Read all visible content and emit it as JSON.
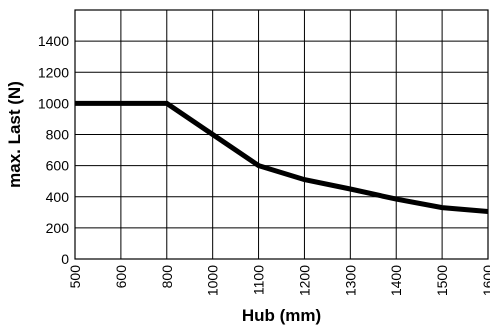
{
  "chart_data": {
    "type": "line",
    "xlabel": "Hub (mm)",
    "ylabel": "max. Last (N)",
    "xlim": [
      500,
      1600
    ],
    "ylim": [
      0,
      1600
    ],
    "x_ticks": [
      500,
      600,
      800,
      1000,
      1100,
      1200,
      1300,
      1400,
      1500,
      1600
    ],
    "y_ticks": [
      0,
      200,
      400,
      600,
      800,
      1000,
      1200,
      1400
    ],
    "grid": true,
    "series": [
      {
        "x": [
          500,
          800,
          1000,
          1100,
          1200,
          1300,
          1400,
          1500,
          1600
        ],
        "values": [
          1000,
          1000,
          800,
          600,
          510,
          450,
          385,
          330,
          305
        ]
      }
    ]
  }
}
